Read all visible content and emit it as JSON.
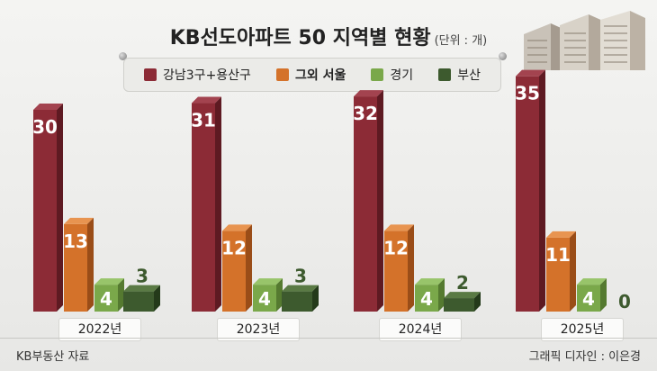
{
  "title": "KB선도아파트 50 지역별 현황",
  "unit": "(단위 : 개)",
  "footer": {
    "source": "KB부동산 자료",
    "credit": "그래픽 디자인 : 이은경"
  },
  "colors": {
    "gangnam": "#8c2b36",
    "seoul_other": "#d4722a",
    "gyeonggi": "#7aa84a",
    "busan": "#3d5a2e"
  },
  "legend": [
    {
      "label": "강남3구+용산구",
      "color": "#8c2b36"
    },
    {
      "label": "그외 서울",
      "color": "#d4722a"
    },
    {
      "label": "경기",
      "color": "#7aa84a"
    },
    {
      "label": "부산",
      "color": "#3d5a2e"
    }
  ],
  "chart_data": {
    "type": "bar",
    "categories": [
      "2022년",
      "2023년",
      "2024년",
      "2025년"
    ],
    "series": [
      {
        "name": "강남3구+용산구",
        "values": [
          30,
          31,
          32,
          35
        ]
      },
      {
        "name": "그외 서울",
        "values": [
          13,
          12,
          12,
          11
        ]
      },
      {
        "name": "경기",
        "values": [
          4,
          4,
          4,
          4
        ]
      },
      {
        "name": "부산",
        "values": [
          3,
          3,
          2,
          0
        ]
      }
    ],
    "ylim": [
      0,
      35
    ],
    "grid": false,
    "legend_position": "top"
  }
}
